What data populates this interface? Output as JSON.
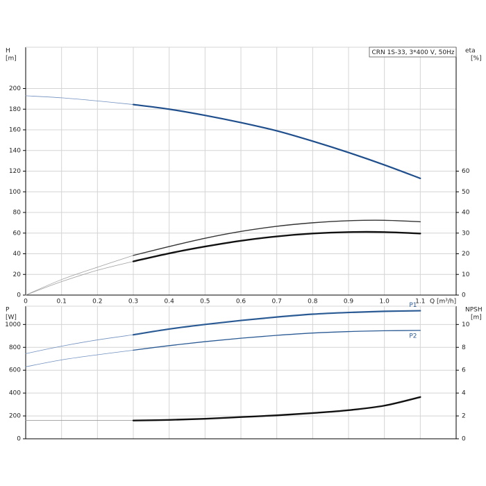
{
  "chart_data": [
    {
      "type": "line",
      "title": "CRN 1S-33, 3*400 V, 50Hz",
      "ylabel": "H",
      "yunit": "[m]",
      "y2label": "eta",
      "y2unit": "[%]",
      "xlabel": "Q [m³/h]",
      "x": [
        0,
        0.1,
        0.2,
        0.3,
        0.4,
        0.5,
        0.6,
        0.7,
        0.8,
        0.9,
        1.0,
        1.1
      ],
      "xlim": [
        0,
        1.2
      ],
      "xticks": [
        0,
        0.1,
        0.2,
        0.3,
        0.4,
        0.5,
        0.6,
        0.7,
        0.8,
        0.9,
        {
          "value": 1,
          "label": "1.0"
        },
        1.1
      ],
      "show_xtick_labels": true,
      "ylim": [
        0,
        240
      ],
      "yticks": [
        0,
        20,
        40,
        60,
        80,
        100,
        120,
        140,
        160,
        180,
        200
      ],
      "y2lim": [
        0,
        120
      ],
      "y2ticks": [
        0,
        10,
        20,
        30,
        40,
        50,
        60
      ],
      "grid": true,
      "series": [
        {
          "color": "#6f8fbf",
          "width": 0.8,
          "axis": "y",
          "values": [
            193,
            191,
            188,
            184.5,
            null,
            null,
            null,
            null,
            null,
            null,
            null,
            null
          ]
        },
        {
          "color": "#1f4e8c",
          "width": 2.2,
          "axis": "y",
          "values": [
            null,
            null,
            null,
            184.5,
            180,
            174,
            167,
            159,
            149,
            138,
            126,
            113
          ]
        },
        {
          "color": "#a0a0a0",
          "width": 0.8,
          "axis": "y2",
          "values": [
            0,
            7.5,
            13.5,
            19.2,
            null,
            null,
            null,
            null,
            null,
            null,
            null,
            null
          ]
        },
        {
          "color": "#333333",
          "width": 1.4,
          "axis": "y2",
          "values": [
            null,
            null,
            null,
            19.2,
            23.5,
            27.5,
            30.8,
            33.3,
            35,
            36,
            36.2,
            35.5
          ]
        },
        {
          "color": "#a0a0a0",
          "width": 0.8,
          "axis": "y2",
          "values": [
            0,
            6.5,
            12,
            16.3,
            null,
            null,
            null,
            null,
            null,
            null,
            null,
            null
          ]
        },
        {
          "color": "#111111",
          "width": 2.4,
          "axis": "y2",
          "values": [
            null,
            null,
            null,
            16.3,
            20.2,
            23.5,
            26.3,
            28.4,
            29.8,
            30.5,
            30.5,
            29.8
          ]
        }
      ]
    },
    {
      "type": "line",
      "ylabel": "P",
      "yunit": "[W]",
      "y2label": "NPSH",
      "y2unit": "[m]",
      "x": [
        0,
        0.1,
        0.2,
        0.3,
        0.4,
        0.5,
        0.6,
        0.7,
        0.8,
        0.9,
        1.0,
        1.1
      ],
      "xlim": [
        0,
        1.2
      ],
      "xticks": [
        0,
        0.1,
        0.2,
        0.3,
        0.4,
        0.5,
        0.6,
        0.7,
        0.8,
        0.9,
        1,
        1.1
      ],
      "show_xtick_labels": false,
      "ylim": [
        0,
        1160
      ],
      "yticks": [
        0,
        200,
        400,
        600,
        800,
        1000
      ],
      "y2lim": [
        0,
        11.6
      ],
      "y2ticks": [
        0,
        2,
        4,
        6,
        8,
        10
      ],
      "grid": true,
      "series": [
        {
          "color": "#6f8fbf",
          "width": 0.8,
          "axis": "y",
          "values": [
            745,
            810,
            865,
            910,
            null,
            null,
            null,
            null,
            null,
            null,
            null,
            null
          ]
        },
        {
          "name": "P1",
          "color": "#2a5a94",
          "width": 2.2,
          "axis": "y",
          "values": [
            null,
            null,
            null,
            910,
            960,
            1000,
            1035,
            1065,
            1090,
            1105,
            1115,
            1120
          ]
        },
        {
          "color": "#6f8fbf",
          "width": 0.8,
          "axis": "y",
          "values": [
            630,
            690,
            735,
            775,
            null,
            null,
            null,
            null,
            null,
            null,
            null,
            null
          ]
        },
        {
          "name": "P2",
          "color": "#2a5a94",
          "width": 1.3,
          "axis": "y",
          "values": [
            null,
            null,
            null,
            775,
            815,
            850,
            880,
            905,
            925,
            938,
            945,
            948
          ]
        },
        {
          "color": "#8a8a8a",
          "width": 0.8,
          "axis": "y2",
          "values": [
            1.6,
            1.6,
            1.6,
            1.6,
            null,
            null,
            null,
            null,
            null,
            null,
            null,
            null
          ]
        },
        {
          "color": "#111111",
          "width": 2.4,
          "axis": "y2",
          "values": [
            null,
            null,
            null,
            1.6,
            1.65,
            1.75,
            1.9,
            2.05,
            2.25,
            2.5,
            2.9,
            3.65
          ]
        }
      ]
    }
  ]
}
